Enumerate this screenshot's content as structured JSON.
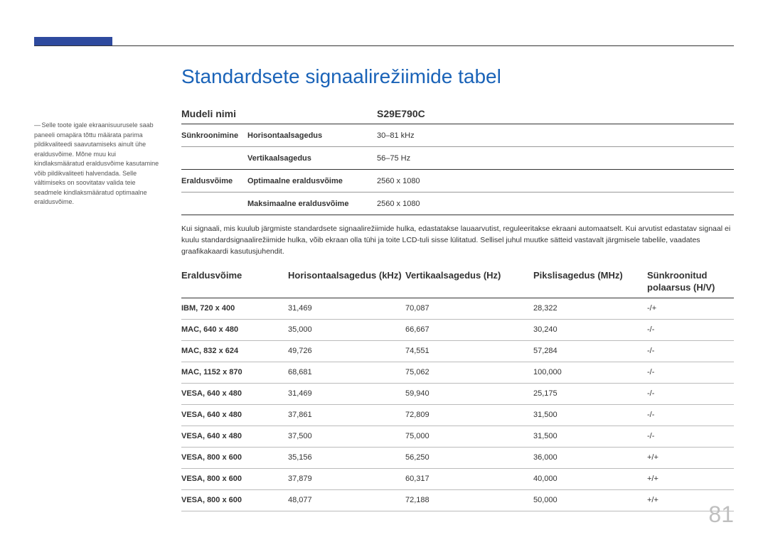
{
  "page_number": "81",
  "title": "Standardsete signaalirežiimide tabel",
  "sidebar_note": "Selle toote igale ekraanisuurusele saab paneeli omapära tõttu määrata parima pildikvaliteedi saavutamiseks ainult ühe eraldusvõime. Mõne muu kui kindlaksmääratud eraldusvõime kasutamine võib pildikvaliteeti halvendada. Selle vältimiseks on soovitatav valida teie seadmele kindlaksmääratud optimaalne eraldusvõime.",
  "spec_header": {
    "left": "Mudeli nimi",
    "right": "S29E790C"
  },
  "spec_rows": [
    {
      "c1": "Sünkroonimine",
      "c2": "Horisontaalsagedus",
      "c3": "30–81 kHz"
    },
    {
      "c1": "",
      "c2": "Vertikaalsagedus",
      "c3": "56–75 Hz"
    },
    {
      "c1": "Eraldusvõime",
      "c2": "Optimaalne eraldusvõime",
      "c3": "2560 x 1080"
    },
    {
      "c1": "",
      "c2": "Maksimaalne eraldusvõime",
      "c3": "2560 x 1080"
    }
  ],
  "paragraph": "Kui signaali, mis kuulub järgmiste standardsete signaalirežiimide hulka, edastatakse lauaarvutist, reguleeritakse ekraani automaatselt. Kui arvutist edastatav signaal ei kuulu standardsignaalirežiimide hulka, võib ekraan olla tühi ja toite LCD-tuli sisse lülitatud. Sellisel juhul muutke sätteid vastavalt järgmisele tabelile, vaadates graafikakaardi kasutusjuhendit.",
  "table2": {
    "headers": {
      "h1": "Eraldusvõime",
      "h2": "Horisontaalsagedus (kHz)",
      "h3": "Vertikaalsagedus (Hz)",
      "h4": "Pikslisagedus (MHz)",
      "h5": "Sünkroonitud polaarsus (H/V)"
    },
    "rows": [
      {
        "r1": "IBM, 720 x 400",
        "r2": "31,469",
        "r3": "70,087",
        "r4": "28,322",
        "r5": "-/+"
      },
      {
        "r1": "MAC, 640 x 480",
        "r2": "35,000",
        "r3": "66,667",
        "r4": "30,240",
        "r5": "-/-"
      },
      {
        "r1": "MAC, 832 x 624",
        "r2": "49,726",
        "r3": "74,551",
        "r4": "57,284",
        "r5": "-/-"
      },
      {
        "r1": "MAC, 1152 x 870",
        "r2": "68,681",
        "r3": "75,062",
        "r4": "100,000",
        "r5": "-/-"
      },
      {
        "r1": "VESA, 640 x 480",
        "r2": "31,469",
        "r3": "59,940",
        "r4": "25,175",
        "r5": "-/-"
      },
      {
        "r1": "VESA, 640 x 480",
        "r2": "37,861",
        "r3": "72,809",
        "r4": "31,500",
        "r5": "-/-"
      },
      {
        "r1": "VESA, 640 x 480",
        "r2": "37,500",
        "r3": "75,000",
        "r4": "31,500",
        "r5": "-/-"
      },
      {
        "r1": "VESA, 800 x 600",
        "r2": "35,156",
        "r3": "56,250",
        "r4": "36,000",
        "r5": "+/+"
      },
      {
        "r1": "VESA, 800 x 600",
        "r2": "37,879",
        "r3": "60,317",
        "r4": "40,000",
        "r5": "+/+"
      },
      {
        "r1": "VESA, 800 x 600",
        "r2": "48,077",
        "r3": "72,188",
        "r4": "50,000",
        "r5": "+/+"
      }
    ]
  }
}
